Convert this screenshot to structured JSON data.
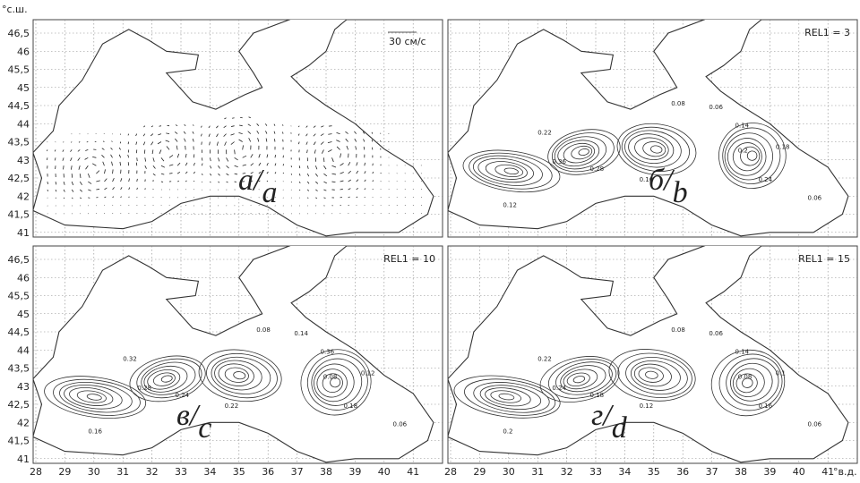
{
  "axes": {
    "lat_unit": "°с.ш.",
    "lon_unit": "°в.д.",
    "lat_ticks": [
      41,
      {
        "value": 41.5,
        "label": "41,5"
      },
      42,
      {
        "value": 42.5,
        "label": "42,5"
      },
      43,
      {
        "value": 43.5,
        "label": "43,5"
      },
      44,
      {
        "value": 44.5,
        "label": "44,5"
      },
      45,
      {
        "value": 45.5,
        "label": "45,5"
      },
      46,
      {
        "value": 46.5,
        "label": "46,5"
      }
    ],
    "lon_ticks": [
      28,
      29,
      30,
      31,
      32,
      33,
      34,
      35,
      36,
      37,
      38,
      39,
      40,
      41
    ]
  },
  "panels": [
    {
      "label": "а",
      "label_en": "a",
      "note": "30 см/с",
      "contour_labels": []
    },
    {
      "label": "б",
      "label_en": "b",
      "note": "REL1 = 3",
      "contour_labels": [
        "0.08",
        "0.06",
        "0.14",
        "0.22",
        "0.36",
        "0.28",
        "0.12",
        "0.16",
        "0.24",
        "0.18",
        "0.2",
        "0.06"
      ]
    },
    {
      "label": "в",
      "label_en": "c",
      "note": "REL1 = 10",
      "contour_labels": [
        "0.08",
        "0.14",
        "0.36",
        "0.32",
        "0.28",
        "0.24",
        "0.16",
        "0.22",
        "0.18",
        "0.12",
        "0.08",
        "0.06"
      ]
    },
    {
      "label": "г",
      "label_en": "d",
      "note": "REL1 = 15",
      "contour_labels": [
        "0.08",
        "0.06",
        "0.14",
        "0.22",
        "0.24",
        "0.18",
        "0.2",
        "0.12",
        "0.16",
        "0.1",
        "0.08",
        "0.06"
      ]
    }
  ]
}
